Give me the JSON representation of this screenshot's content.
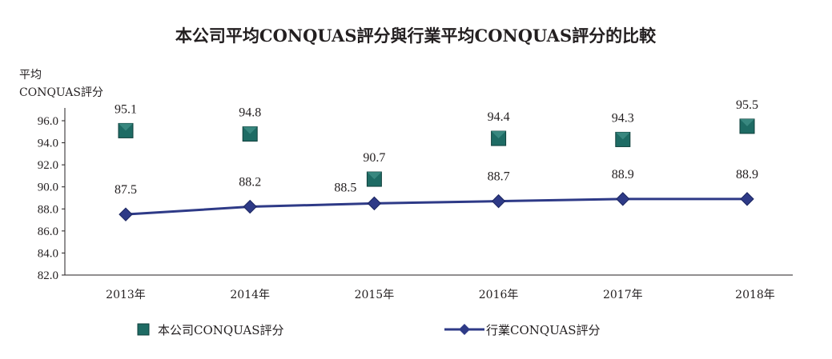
{
  "chart_data": {
    "type": "line",
    "title": "本公司平均CONQUAS評分與行業平均CONQUAS評分的比較",
    "ylabel_line1": "平均",
    "ylabel_line2": "CONQUAS評分",
    "xlabel": "",
    "categories": [
      "2013年",
      "2014年",
      "2015年",
      "2016年",
      "2017年",
      "2018年"
    ],
    "yticks": [
      "82.0",
      "84.0",
      "86.0",
      "88.0",
      "90.0",
      "92.0",
      "94.0",
      "96.0"
    ],
    "ylim": [
      82.0,
      96.0
    ],
    "grid": false,
    "legend_position": "bottom",
    "series": [
      {
        "name": "本公司CONQUAS評分",
        "marker": "square",
        "values": [
          95.1,
          94.8,
          90.7,
          94.4,
          94.3,
          95.5
        ],
        "labels": [
          "95.1",
          "94.8",
          "90.7",
          "94.4",
          "94.3",
          "95.5"
        ],
        "color": "#1e6b64"
      },
      {
        "name": "行業CONQUAS評分",
        "marker": "diamond",
        "values": [
          87.5,
          88.2,
          88.5,
          88.7,
          88.9,
          88.9
        ],
        "labels": [
          "87.5",
          "88.2",
          "88.5",
          "88.7",
          "88.9",
          "88.9"
        ],
        "color": "#2e3a87"
      }
    ]
  }
}
